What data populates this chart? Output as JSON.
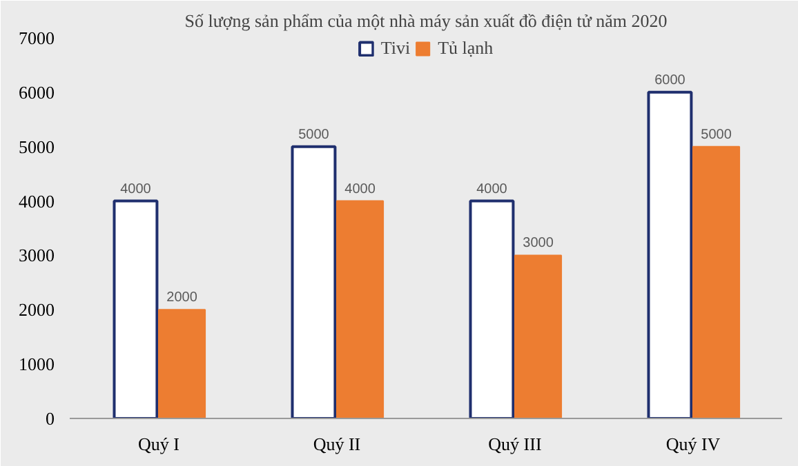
{
  "chart_data": {
    "type": "bar",
    "title": "Số lượng sản phẩm của một nhà máy sản xuất đồ điện tử năm 2020",
    "categories": [
      "Quý I",
      "Quý II",
      "Quý III",
      "Quý IV"
    ],
    "series": [
      {
        "name": "Tivi",
        "color": "#1f2f6e",
        "values": [
          4000,
          5000,
          4000,
          6000
        ]
      },
      {
        "name": "Tủ lạnh",
        "color": "#ed7d31",
        "values": [
          2000,
          4000,
          3000,
          5000
        ]
      }
    ],
    "ylim": [
      0,
      7000
    ],
    "yticks": [
      0,
      1000,
      2000,
      3000,
      4000,
      5000,
      6000,
      7000
    ],
    "data_labels": true,
    "legend": "top",
    "grid": false
  }
}
